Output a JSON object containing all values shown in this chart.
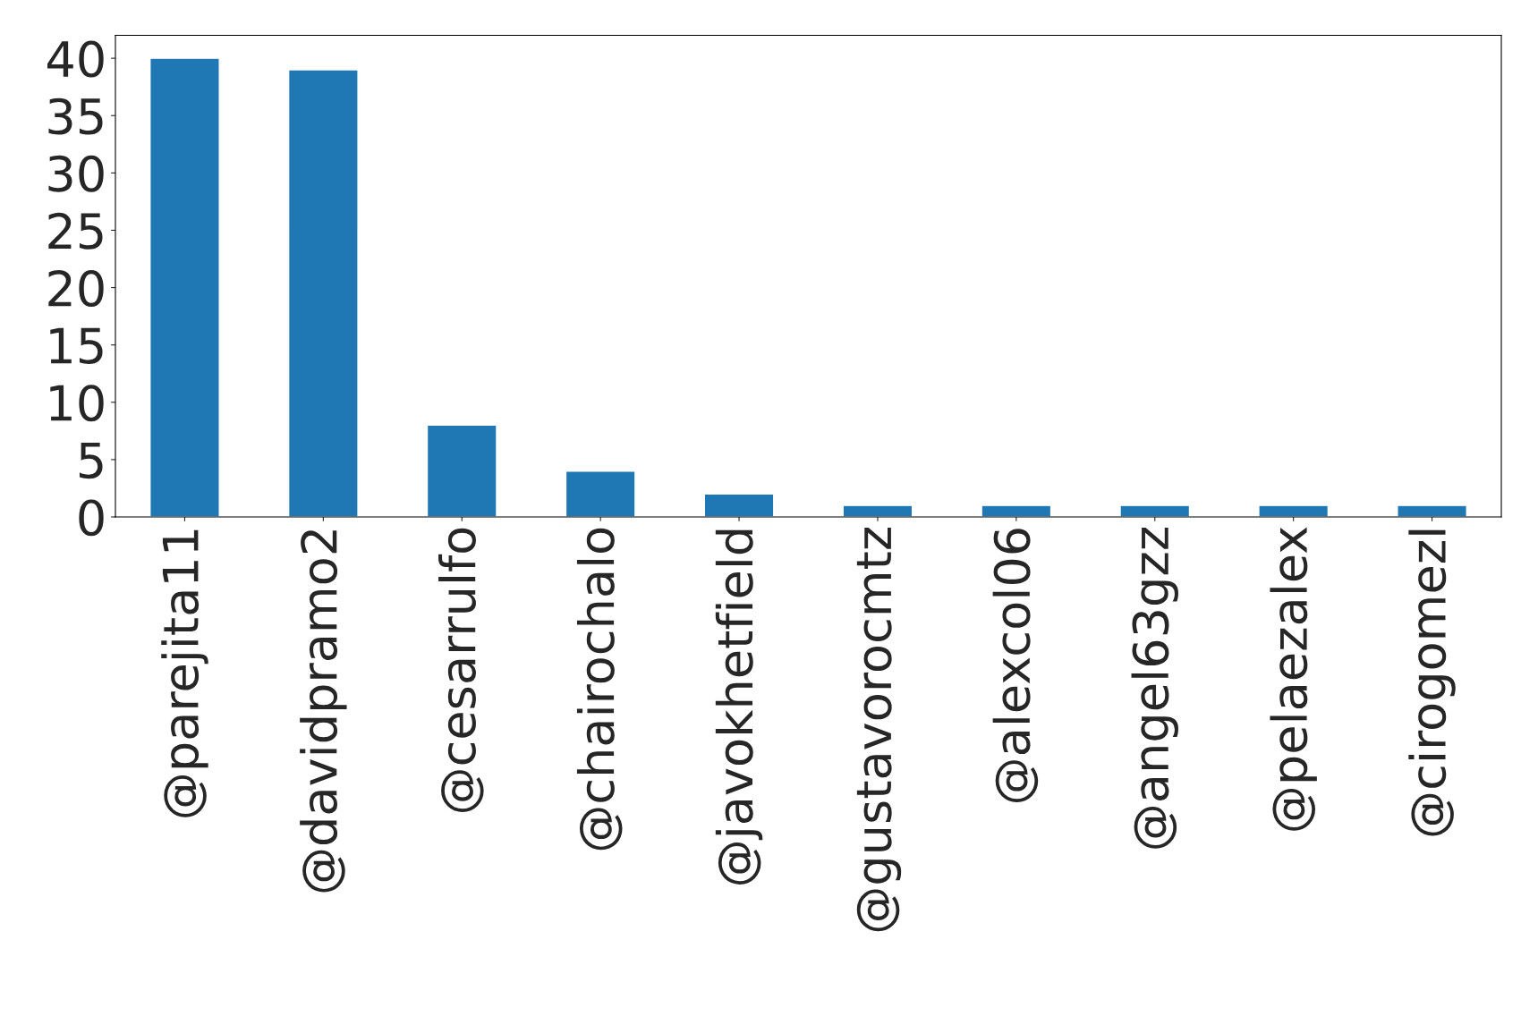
{
  "chart_data": {
    "type": "bar",
    "categories": [
      "@parejita11",
      "@davidpramo2",
      "@cesarrulfo",
      "@chairochalo",
      "@javokhetfield",
      "@gustavorocmtz",
      "@alexcol06",
      "@angel63gzz",
      "@pelaezalex",
      "@cirogomezl"
    ],
    "values": [
      40,
      39,
      8,
      4,
      2,
      1,
      1,
      1,
      1,
      1
    ],
    "color": "#1f77b4",
    "ylim": [
      0,
      42
    ],
    "yticks": [
      0,
      5,
      10,
      15,
      20,
      25,
      30,
      35,
      40
    ],
    "grid": false,
    "legend": false
  }
}
